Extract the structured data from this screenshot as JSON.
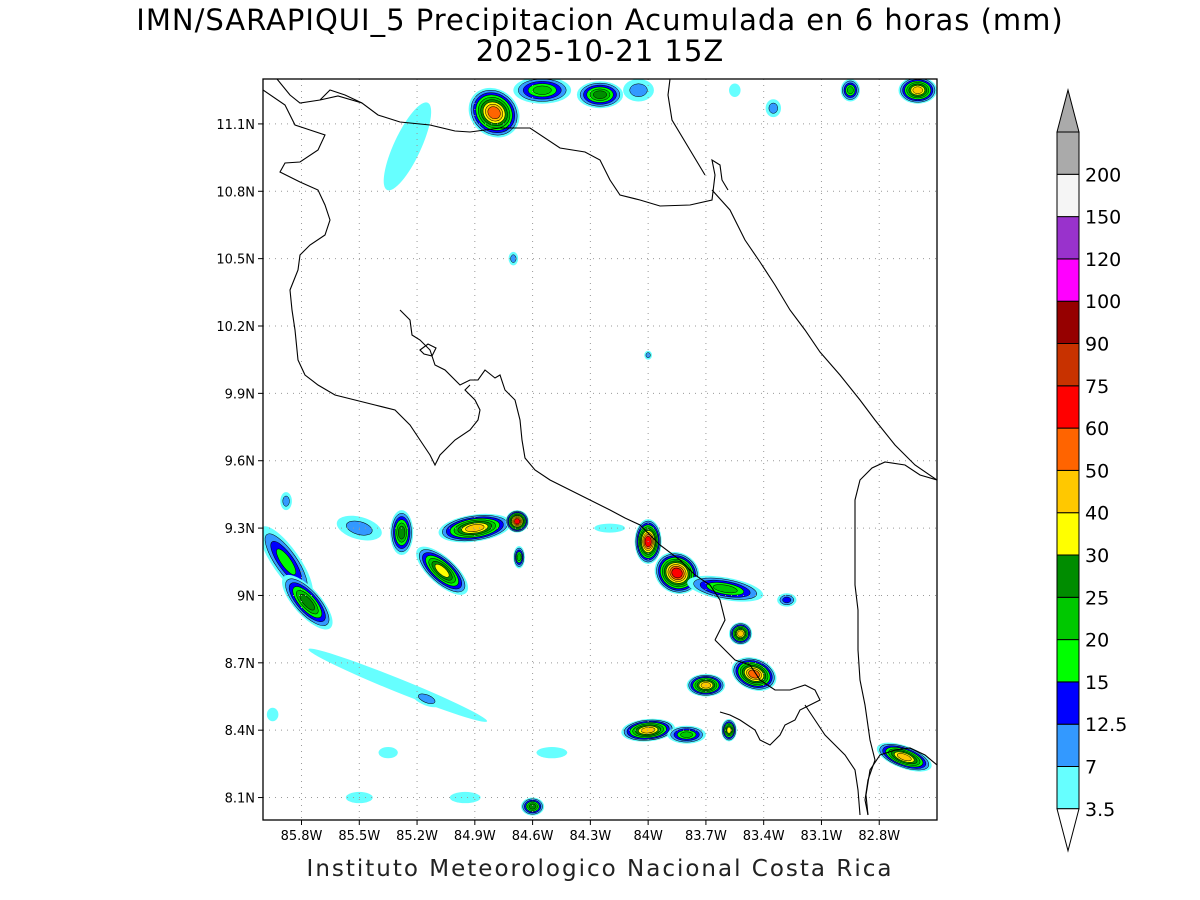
{
  "title": {
    "line1": "IMN/SARAPIQUI_5 Precipitacion Acumulada en 6 horas (mm)",
    "line2": "2025-10-21 15Z"
  },
  "footer": "Instituto Meteorologico Nacional Costa Rica",
  "map": {
    "lon_range": [
      -86.0,
      -82.5
    ],
    "lat_range": [
      8.0,
      11.3
    ],
    "lat_ticks": [
      {
        "value": 11.1,
        "label": "11.1N"
      },
      {
        "value": 10.8,
        "label": "10.8N"
      },
      {
        "value": 10.5,
        "label": "10.5N"
      },
      {
        "value": 10.2,
        "label": "10.2N"
      },
      {
        "value": 9.9,
        "label": "9.9N"
      },
      {
        "value": 9.6,
        "label": "9.6N"
      },
      {
        "value": 9.3,
        "label": "9.3N"
      },
      {
        "value": 9.0,
        "label": "9N"
      },
      {
        "value": 8.7,
        "label": "8.7N"
      },
      {
        "value": 8.4,
        "label": "8.4N"
      },
      {
        "value": 8.1,
        "label": "8.1N"
      }
    ],
    "lon_ticks": [
      {
        "value": -85.8,
        "label": "85.8W"
      },
      {
        "value": -85.5,
        "label": "85.5W"
      },
      {
        "value": -85.2,
        "label": "85.2W"
      },
      {
        "value": -84.9,
        "label": "84.9W"
      },
      {
        "value": -84.6,
        "label": "84.6W"
      },
      {
        "value": -84.3,
        "label": "84.3W"
      },
      {
        "value": -84.0,
        "label": "84W"
      },
      {
        "value": -83.7,
        "label": "83.7W"
      },
      {
        "value": -83.4,
        "label": "83.4W"
      },
      {
        "value": -83.1,
        "label": "83.1W"
      },
      {
        "value": -82.8,
        "label": "82.8W"
      }
    ],
    "grid": true
  },
  "colorbar": {
    "labels": [
      "3.5",
      "7",
      "12.5",
      "15",
      "20",
      "25",
      "30",
      "40",
      "50",
      "60",
      "75",
      "90",
      "100",
      "120",
      "150",
      "200"
    ],
    "colors": [
      "#66ffff",
      "#3399ff",
      "#0000ff",
      "#00ff00",
      "#00c800",
      "#008c00",
      "#ffff00",
      "#ffc800",
      "#ff6400",
      "#ff0000",
      "#c83200",
      "#960000",
      "#ff00ff",
      "#9932cc",
      "#f5f5f5",
      "#aaaaaa"
    ],
    "units": "mm"
  },
  "precip_cells": [
    {
      "lon": -84.8,
      "lat": 11.15,
      "rx": 0.12,
      "ry": 0.12,
      "rot": -50,
      "max": 55
    },
    {
      "lon": -85.25,
      "lat": 11.0,
      "rx": 0.25,
      "ry": 0.06,
      "rot": -65,
      "max": 4
    },
    {
      "lon": -84.55,
      "lat": 11.25,
      "rx": 0.15,
      "ry": 0.06,
      "rot": 0,
      "max": 20
    },
    {
      "lon": -84.25,
      "lat": 11.23,
      "rx": 0.12,
      "ry": 0.06,
      "rot": 0,
      "max": 25
    },
    {
      "lon": -84.05,
      "lat": 11.25,
      "rx": 0.08,
      "ry": 0.05,
      "rot": 0,
      "max": 12
    },
    {
      "lon": -83.35,
      "lat": 11.17,
      "rx": 0.04,
      "ry": 0.04,
      "rot": 0,
      "max": 12
    },
    {
      "lon": -82.6,
      "lat": 11.25,
      "rx": 0.1,
      "ry": 0.06,
      "rot": 0,
      "max": 40
    },
    {
      "lon": -82.95,
      "lat": 11.25,
      "rx": 0.05,
      "ry": 0.05,
      "rot": 0,
      "max": 20
    },
    {
      "lon": -83.55,
      "lat": 11.25,
      "rx": 0.03,
      "ry": 0.03,
      "rot": 0,
      "max": 5
    },
    {
      "lon": -84.7,
      "lat": 10.5,
      "rx": 0.025,
      "ry": 0.03,
      "rot": 0,
      "max": 8
    },
    {
      "lon": -84.0,
      "lat": 10.07,
      "rx": 0.02,
      "ry": 0.02,
      "rot": 0,
      "max": 8
    },
    {
      "lon": -84.9,
      "lat": 9.3,
      "rx": 0.19,
      "ry": 0.06,
      "rot": -8,
      "max": 40
    },
    {
      "lon": -84.68,
      "lat": 9.33,
      "rx": 0.06,
      "ry": 0.05,
      "rot": 0,
      "max": 62
    },
    {
      "lon": -85.28,
      "lat": 9.28,
      "rx": 0.06,
      "ry": 0.1,
      "rot": 0,
      "max": 25
    },
    {
      "lon": -85.07,
      "lat": 9.11,
      "rx": 0.17,
      "ry": 0.06,
      "rot": 42,
      "max": 35
    },
    {
      "lon": -85.5,
      "lat": 9.3,
      "rx": 0.12,
      "ry": 0.05,
      "rot": 15,
      "max": 12
    },
    {
      "lon": -85.88,
      "lat": 9.15,
      "rx": 0.22,
      "ry": 0.06,
      "rot": 55,
      "max": 18
    },
    {
      "lon": -85.77,
      "lat": 8.97,
      "rx": 0.18,
      "ry": 0.06,
      "rot": 48,
      "max": 25
    },
    {
      "lon": -85.3,
      "lat": 8.6,
      "rx": 0.5,
      "ry": 0.03,
      "rot": 22,
      "max": 4
    },
    {
      "lon": -85.15,
      "lat": 8.54,
      "rx": 0.08,
      "ry": 0.03,
      "rot": 22,
      "max": 12
    },
    {
      "lon": -84.0,
      "lat": 9.24,
      "rx": 0.07,
      "ry": 0.1,
      "rot": 0,
      "max": 65
    },
    {
      "lon": -83.85,
      "lat": 9.1,
      "rx": 0.12,
      "ry": 0.09,
      "rot": 30,
      "max": 62
    },
    {
      "lon": -83.6,
      "lat": 9.03,
      "rx": 0.2,
      "ry": 0.05,
      "rot": 10,
      "max": 20
    },
    {
      "lon": -83.52,
      "lat": 8.83,
      "rx": 0.06,
      "ry": 0.05,
      "rot": 0,
      "max": 40
    },
    {
      "lon": -83.45,
      "lat": 8.65,
      "rx": 0.12,
      "ry": 0.07,
      "rot": 20,
      "max": 55
    },
    {
      "lon": -83.7,
      "lat": 8.6,
      "rx": 0.1,
      "ry": 0.05,
      "rot": 0,
      "max": 40
    },
    {
      "lon": -84.0,
      "lat": 8.4,
      "rx": 0.14,
      "ry": 0.05,
      "rot": -5,
      "max": 42
    },
    {
      "lon": -83.8,
      "lat": 8.38,
      "rx": 0.1,
      "ry": 0.04,
      "rot": 0,
      "max": 22
    },
    {
      "lon": -83.58,
      "lat": 8.4,
      "rx": 0.04,
      "ry": 0.05,
      "rot": 0,
      "max": 35
    },
    {
      "lon": -83.28,
      "lat": 8.98,
      "rx": 0.05,
      "ry": 0.03,
      "rot": 0,
      "max": 13
    },
    {
      "lon": -82.67,
      "lat": 8.28,
      "rx": 0.15,
      "ry": 0.05,
      "rot": 20,
      "max": 40
    },
    {
      "lon": -84.6,
      "lat": 8.06,
      "rx": 0.06,
      "ry": 0.04,
      "rot": 0,
      "max": 25
    },
    {
      "lon": -84.95,
      "lat": 8.1,
      "rx": 0.08,
      "ry": 0.025,
      "rot": 0,
      "max": 5
    },
    {
      "lon": -85.5,
      "lat": 8.1,
      "rx": 0.07,
      "ry": 0.025,
      "rot": 0,
      "max": 5
    },
    {
      "lon": -84.5,
      "lat": 8.3,
      "rx": 0.08,
      "ry": 0.025,
      "rot": 0,
      "max": 5
    },
    {
      "lon": -85.35,
      "lat": 8.3,
      "rx": 0.05,
      "ry": 0.025,
      "rot": 0,
      "max": 5
    },
    {
      "lon": -84.2,
      "lat": 9.3,
      "rx": 0.08,
      "ry": 0.02,
      "rot": 0,
      "max": 4
    },
    {
      "lon": -84.67,
      "lat": 9.17,
      "rx": 0.03,
      "ry": 0.05,
      "rot": 0,
      "max": 22
    },
    {
      "lon": -85.95,
      "lat": 8.47,
      "rx": 0.03,
      "ry": 0.03,
      "rot": 0,
      "max": 5
    },
    {
      "lon": -85.88,
      "lat": 9.42,
      "rx": 0.03,
      "ry": 0.04,
      "rot": 0,
      "max": 8
    }
  ]
}
